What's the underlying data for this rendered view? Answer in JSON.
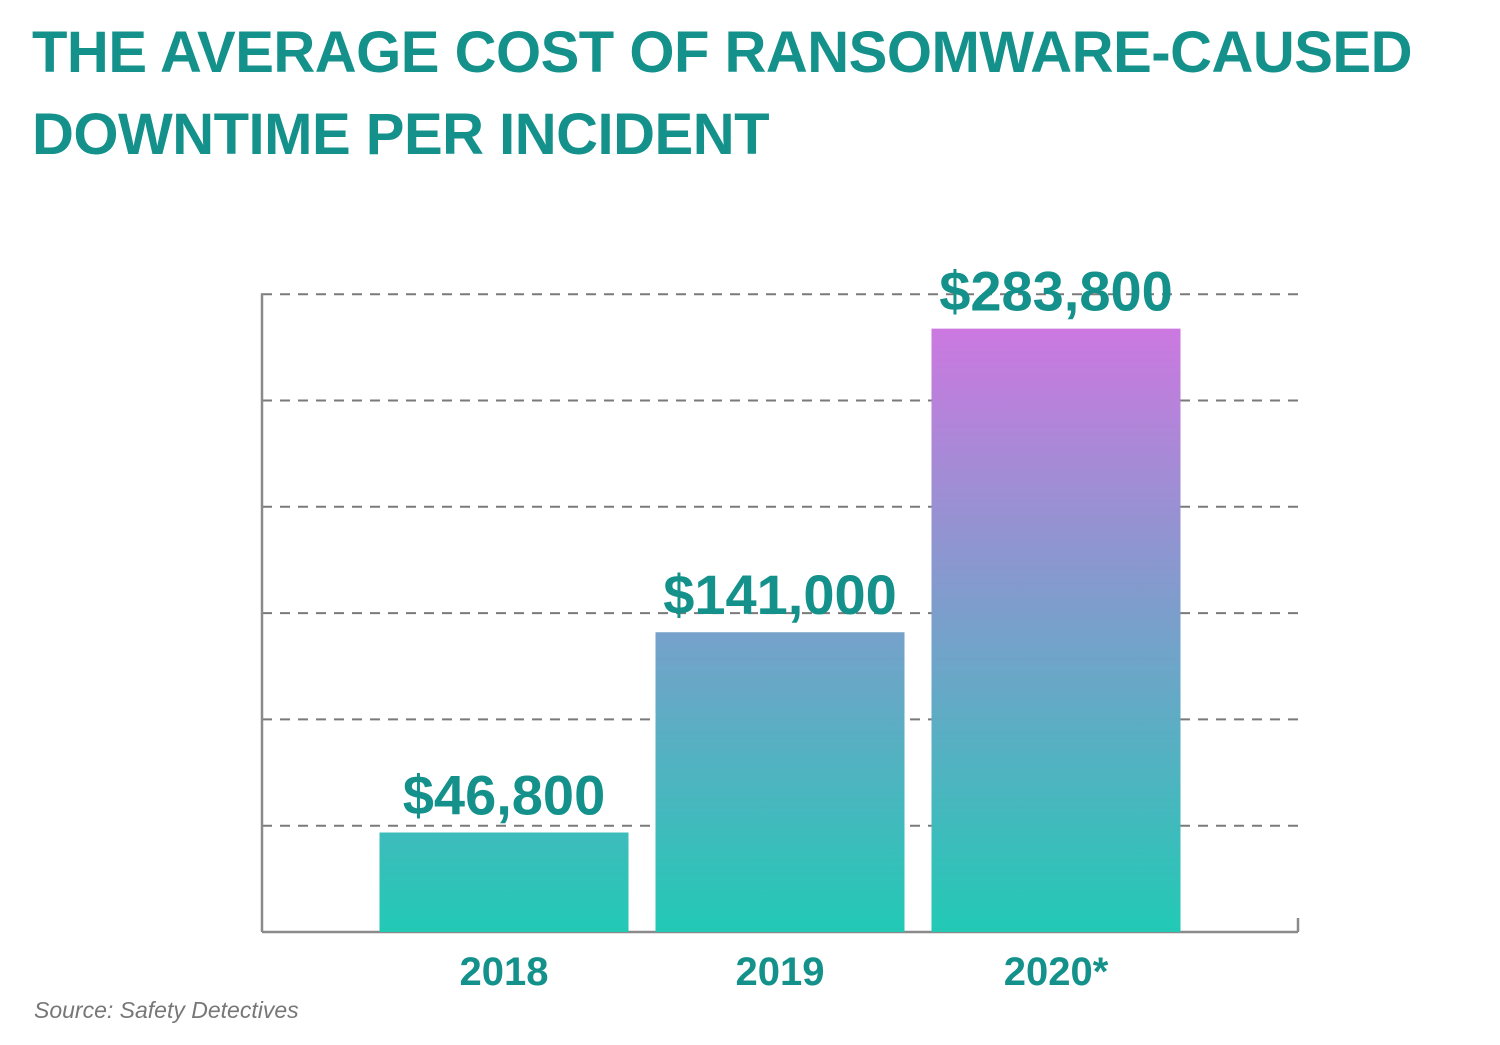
{
  "title_lines": [
    "THE AVERAGE COST OF RANSOMWARE-CAUSED",
    "DOWNTIME PER INCIDENT"
  ],
  "source": "Source: Safety Detectives",
  "colors": {
    "title": "#13918a",
    "label": "#13918a",
    "axis": "#8a8a8a",
    "grid": "#7a7a7a",
    "bar_bottom": "#22c9b5",
    "bar_top": "#cc78e0"
  },
  "chart_data": {
    "type": "bar",
    "categories": [
      "2018",
      "2019",
      "2020*"
    ],
    "values": [
      46800,
      141000,
      283800
    ],
    "value_labels": [
      "$46,800",
      "$141,000",
      "$283,800"
    ],
    "title": "THE AVERAGE COST OF RANSOMWARE-CAUSED DOWNTIME PER INCIDENT",
    "xlabel": "",
    "ylabel": "",
    "ylim": [
      0,
      300000
    ],
    "gridline_count": 6,
    "y_tick_labels_shown": false,
    "grid": true,
    "grid_style": "dashed",
    "legend": "none"
  }
}
